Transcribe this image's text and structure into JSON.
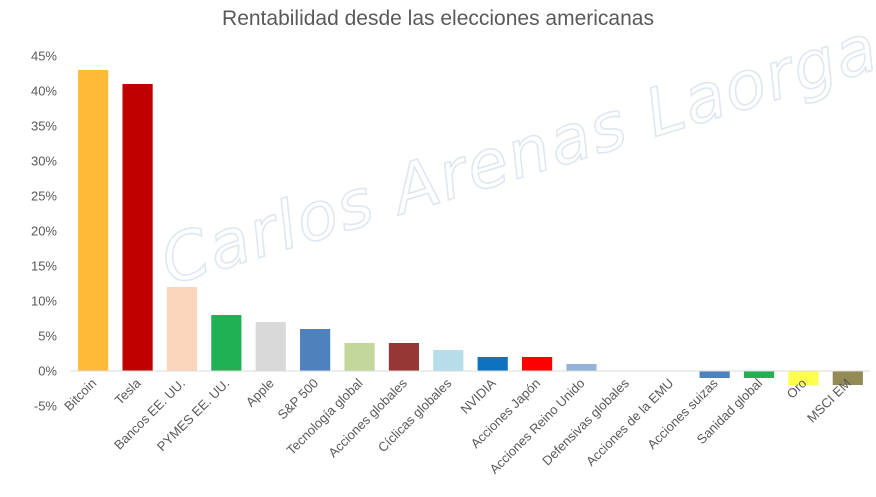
{
  "watermark": "Carlos Arenas Laorga",
  "chart_data": {
    "type": "bar",
    "title": "Rentabilidad desde las elecciones americanas",
    "xlabel": "",
    "ylabel": "",
    "ylim": [
      -5,
      45
    ],
    "yticks": [
      "-5%",
      "0%",
      "5%",
      "10%",
      "15%",
      "20%",
      "25%",
      "30%",
      "35%",
      "40%",
      "45%"
    ],
    "ytick_values": [
      -5,
      0,
      5,
      10,
      15,
      20,
      25,
      30,
      35,
      40,
      45
    ],
    "grid": false,
    "legend": "none",
    "categories": [
      "Bitcoin",
      "Tesla",
      "Bancos EE. UU.",
      "PYMES  EE. UU.",
      "Apple",
      "S&P 500",
      "Tecnología global",
      "Acciones globales",
      "Cíclicas globales",
      "NVIDIA",
      "Acciones Japón",
      "Acciones Reino Unido",
      "Defensivas globales",
      "Acciones de la EMU",
      "Acciones suizas",
      "Sanidad global",
      "Oro",
      "MSCI EM"
    ],
    "values": [
      43,
      41,
      12,
      8,
      7,
      6,
      4,
      4,
      3,
      2,
      2,
      1,
      0,
      0,
      -1,
      -1,
      -2,
      -2
    ],
    "colors": [
      "#FFBA38",
      "#C00000",
      "#FBD5BC",
      "#1FB154",
      "#D9D9D9",
      "#4F81BD",
      "#C3D69B",
      "#953735",
      "#B7DEE8",
      "#0E72C0",
      "#FF0000",
      "#95B3D7",
      "#FFFFFF",
      "#FFFFFF",
      "#4F81BD",
      "#1FB154",
      "#FFFF4D",
      "#948A54"
    ]
  }
}
